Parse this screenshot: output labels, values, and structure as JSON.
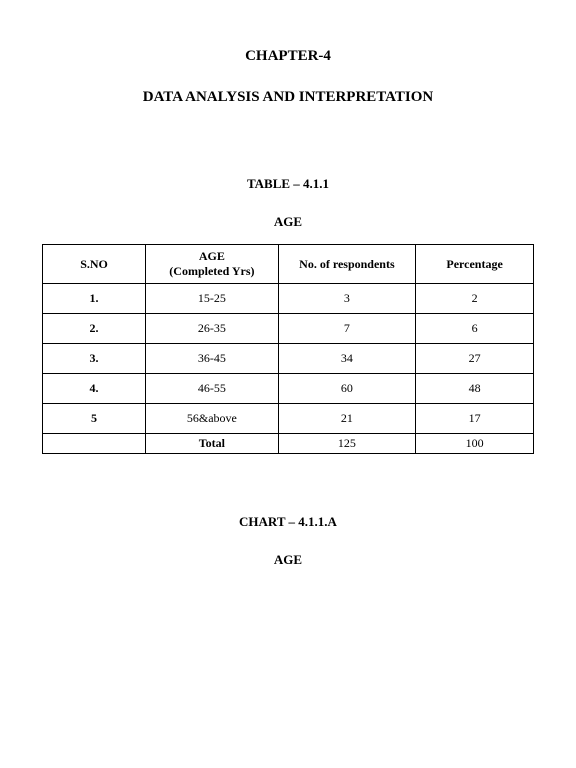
{
  "chapter_title": "CHAPTER-4",
  "section_title": "DATA ANALYSIS AND INTERPRETATION",
  "table": {
    "label": "TABLE – 4.1.1",
    "subject": "AGE",
    "columns": [
      {
        "header": "S.NO",
        "subheader": ""
      },
      {
        "header": "AGE",
        "subheader": "(Completed Yrs)"
      },
      {
        "header": "No. of respondents",
        "subheader": ""
      },
      {
        "header": "Percentage",
        "subheader": ""
      }
    ],
    "rows": [
      {
        "sno": "1.",
        "age": "15-25",
        "respondents": "3",
        "percentage": "2"
      },
      {
        "sno": "2.",
        "age": "26-35",
        "respondents": "7",
        "percentage": "6"
      },
      {
        "sno": "3.",
        "age": "36-45",
        "respondents": "34",
        "percentage": "27"
      },
      {
        "sno": "4.",
        "age": "46-55",
        "respondents": "60",
        "percentage": "48"
      },
      {
        "sno": "5",
        "age": "56&above",
        "respondents": "21",
        "percentage": "17"
      }
    ],
    "total": {
      "label": "Total",
      "respondents": "125",
      "percentage": "100"
    }
  },
  "chart": {
    "label": "CHART – 4.1.1.A",
    "subject": "AGE"
  }
}
